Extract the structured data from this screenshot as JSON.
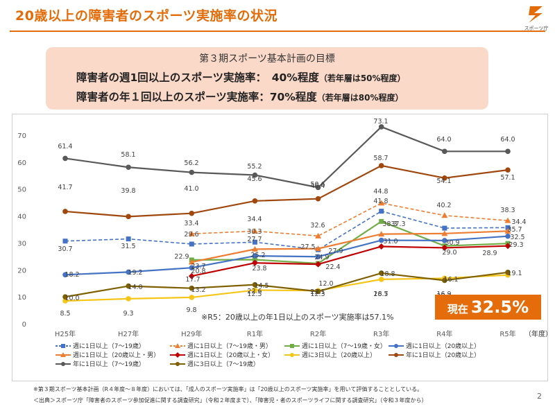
{
  "title": "20歳以上の障害者のスポーツ実施率の状況",
  "logo_text": "スポーツ庁",
  "goal": {
    "heading": "第３期スポーツ基本計画の目標",
    "line1_main": "障害者の週1回以上のスポーツ実施率：　40%程度",
    "line1_sub": "（若年層は50%程度）",
    "line2_main": "障害者の年１回以上のスポーツ実施率：70%程度",
    "line2_sub": "（若年層は80%程度）"
  },
  "current_badge": {
    "label": "現在",
    "value": "32.5%"
  },
  "note_r5": "※R5：20歳以上の年1日以上のスポーツ実施率は57.1%",
  "footnote1": "※第３期スポーツ基本計画（R４年度～８年度）においては、「成人のスポーツ実施率」は「20歳以上のスポーツ実施率」を用いて評価することとしている。",
  "footnote2": "＜出典＞スポーツ庁「障害者のスポーツ参加促進に関する調査研究」（令和２年度まで）、「障害児・者のスポーツライフに関する調査研究」（令和３年度から）",
  "page_number": "2",
  "colors": {
    "accent": "#e36c09",
    "badge": "#e46c0a",
    "goal_bg": "#fbd9c8"
  },
  "chart_data": {
    "type": "line",
    "categories": [
      "H25年",
      "H27年",
      "H29年",
      "R1年",
      "R2年",
      "R3年",
      "R4年",
      "R5年"
    ],
    "x_unit_label": "（年度）",
    "ylim": [
      0,
      70
    ],
    "yticks": [
      0,
      10,
      20,
      30,
      40,
      50,
      60,
      70
    ],
    "grid": false,
    "series": [
      {
        "name": "週に1日以上（7～19歳）",
        "color": "#4472c4",
        "style": "dashed",
        "marker": "square",
        "values": [
          30.7,
          31.5,
          29.6,
          30.3,
          27.5,
          41.8,
          35.5,
          35.7
        ]
      },
      {
        "name": "週に1日以上（7～19歳・男）",
        "color": "#ed7d31",
        "style": "dashed",
        "marker": "triangle",
        "values": [
          null,
          null,
          33.4,
          34.4,
          32.6,
          44.8,
          40.2,
          38.3
        ]
      },
      {
        "name": "週に1日以上（7～19歳・女）",
        "color": "#70ad47",
        "style": "solid",
        "marker": "square",
        "values": [
          null,
          null,
          23.7,
          23.8,
          22.4,
          38.0,
          28.9,
          29.8
        ]
      },
      {
        "name": "週に1日以上（20歳以上）",
        "color": "#4472c4",
        "style": "solid",
        "marker": "circle",
        "values": [
          18.2,
          19.2,
          20.8,
          25.2,
          24.9,
          31.0,
          30.9,
          32.5
        ]
      },
      {
        "name": "週に1日以上（20歳以上・男）",
        "color": "#ed7d31",
        "style": "solid",
        "marker": "triangle",
        "values": [
          null,
          null,
          22.9,
          27.7,
          27.9,
          33.3,
          33.5,
          34.4
        ]
      },
      {
        "name": "週に1日以上（20歳以上・女）",
        "color": "#c00000",
        "style": "solid",
        "marker": "diamond",
        "values": [
          null,
          null,
          17.7,
          22.6,
          22.1,
          28.7,
          28.2,
          28.9
        ]
      },
      {
        "name": "週に3日以上（20歳以上）",
        "color": "#f5c518",
        "style": "solid",
        "marker": "circle",
        "values": [
          8.5,
          9.3,
          9.8,
          12.5,
          12.3,
          16.5,
          16.9,
          18.1
        ]
      },
      {
        "name": "年に1日以上（20歳以上）",
        "color": "#a0470e",
        "style": "solid",
        "marker": "circle",
        "values": [
          41.7,
          39.8,
          41.0,
          45.6,
          46.4,
          58.7,
          54.1,
          57.1
        ]
      },
      {
        "name": "年に1日以上（7～19歳）",
        "color": "#595959",
        "style": "solid",
        "marker": "circle",
        "values": [
          61.4,
          58.1,
          56.2,
          55.2,
          50.6,
          73.1,
          64.0,
          64.0
        ]
      },
      {
        "name": "週に3日以上（7～19歳）",
        "color": "#7f6000",
        "style": "solid",
        "marker": "circle",
        "values": [
          10.0,
          14.0,
          13.2,
          14.5,
          12.0,
          18.8,
          16.1,
          19.1
        ]
      }
    ],
    "data_labels": [
      "61.4",
      "58.1",
      "56.2",
      "55.2",
      "50.6",
      "73.1",
      "64.0",
      "64.0",
      "41.7",
      "39.8",
      "41.0",
      "45.6",
      "46.4",
      "58.7",
      "54.1",
      "57.1",
      "33.4",
      "34.4",
      "32.6",
      "44.8",
      "40.2",
      "38.3",
      "29.6",
      "30.3",
      "41.8",
      "38.3",
      "34.4",
      "30.7",
      "31.5",
      "27.7",
      "27.5",
      "35.7",
      "32.5",
      "37.3",
      "31.0",
      "30.9",
      "29.0",
      "29.3",
      "22.9",
      "25.2",
      "24.9",
      "27.9",
      "23.8",
      "22.4",
      "18.2",
      "19.2",
      "20.8",
      "23.7",
      "17.7",
      "22.6",
      "22.1",
      "28.7",
      "28.2",
      "28.9",
      "10.0",
      "14.0",
      "13.2",
      "14.5",
      "12.0",
      "18.8",
      "16.1",
      "19.1",
      "8.5",
      "9.3",
      "9.8",
      "12.5",
      "12.3",
      "16.5",
      "16.9",
      "18.1"
    ]
  },
  "legend": [
    "週に1日以上（7～19歳）",
    "週に1日以上（7～19歳・男）",
    "週に1日以上（7～19歳・女）",
    "週に1日以上（20歳以上）",
    "週に1日以上（20歳以上・男）",
    "週に1日以上（20歳以上・女）",
    "週に3日以上（20歳以上）",
    "年に1日以上（20歳以上）",
    "年に1日以上（7～19歳）",
    "週に3日以上（7～19歳）"
  ]
}
